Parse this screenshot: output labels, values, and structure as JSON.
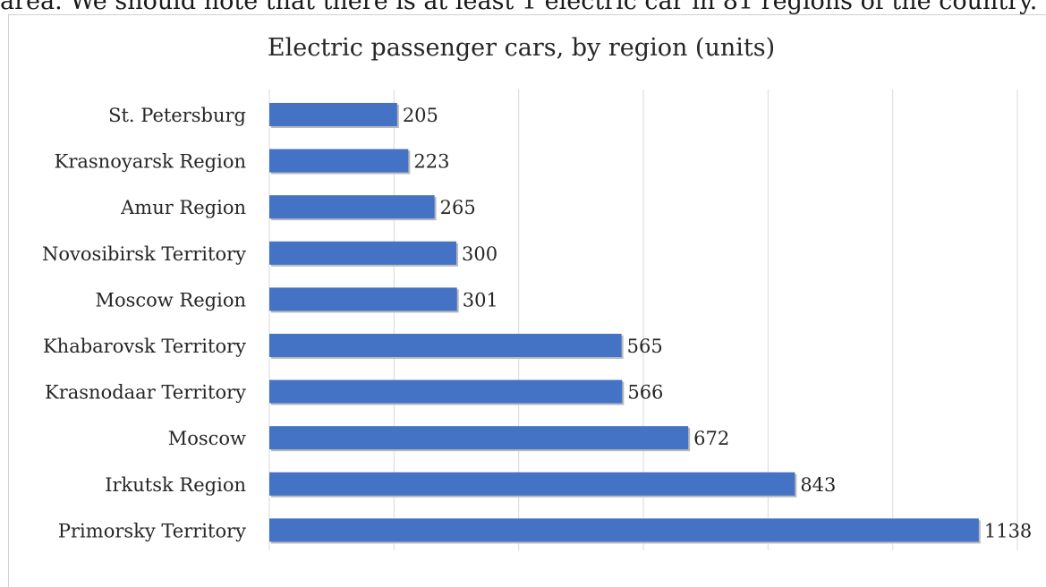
{
  "top_text": "area. We should note that there is at least 1 electric car in 81 regions of the country.",
  "chart_data": {
    "type": "bar",
    "orientation": "horizontal",
    "title": "Electric passenger cars, by region (units)",
    "xlabel": "",
    "ylabel": "",
    "categories": [
      "St. Petersburg",
      "Krasnoyarsk Region",
      "Amur Region",
      "Novosibirsk Territory",
      "Moscow Region",
      "Khabarovsk Territory",
      "Krasnodaar Territory",
      "Moscow",
      "Irkutsk Region",
      "Primorsky Territory"
    ],
    "values": [
      205,
      223,
      265,
      300,
      301,
      565,
      566,
      672,
      843,
      1138
    ],
    "data_labels": [
      "205",
      "223",
      "265",
      "300",
      "301",
      "565",
      "566",
      "672",
      "843",
      "1138"
    ],
    "xlim": [
      0,
      1200
    ],
    "x_gridline_step": 200,
    "grid": "vertical",
    "bar_color": "#4472c4",
    "legend": "none"
  }
}
